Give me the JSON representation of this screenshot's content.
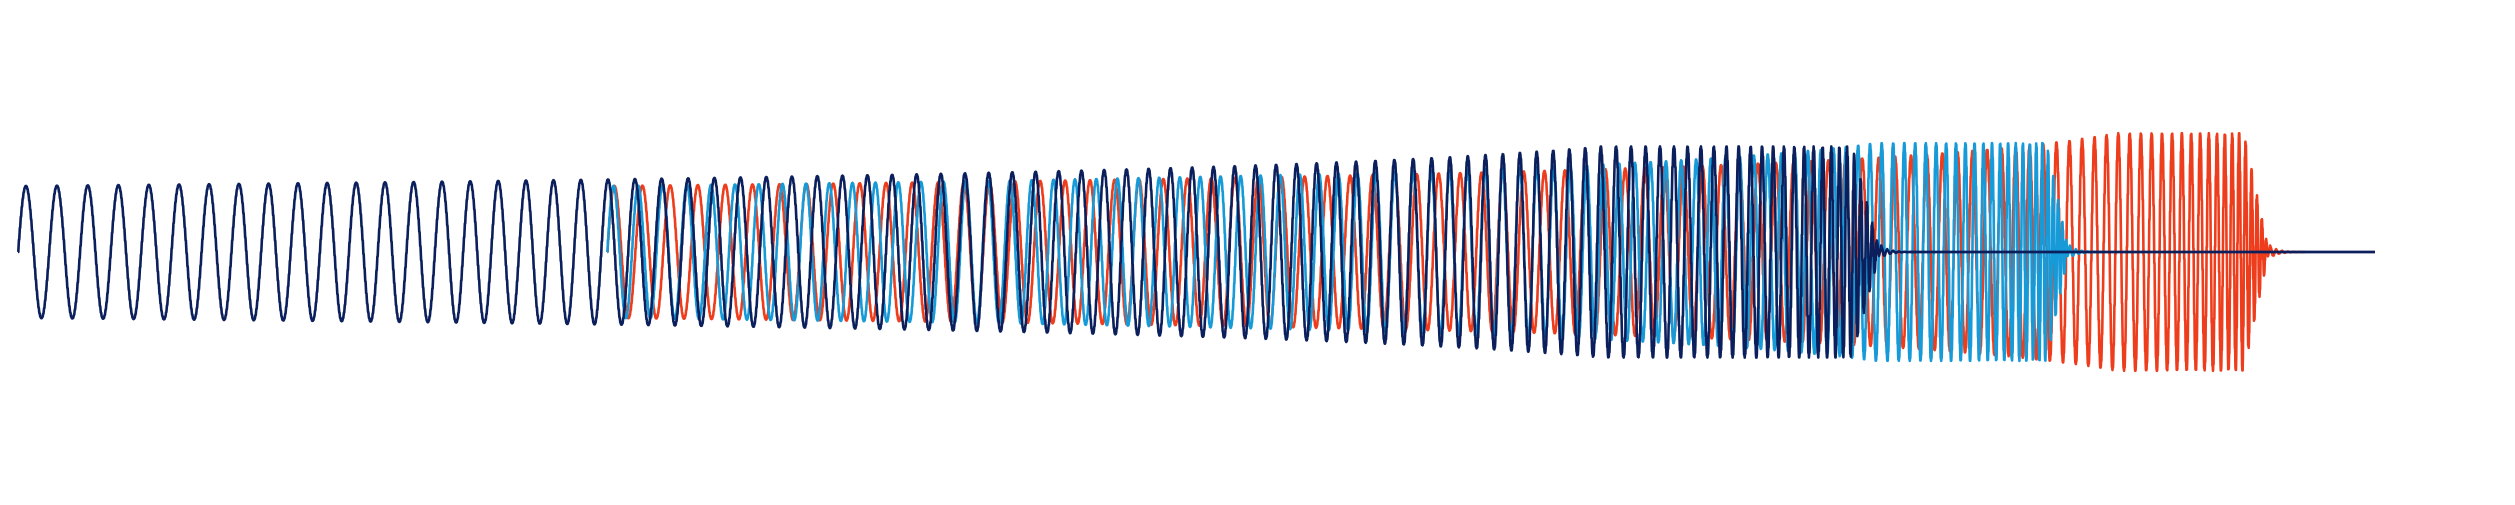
{
  "chart_data": {
    "type": "line",
    "title": "",
    "xlabel": "",
    "ylabel": "",
    "grid": false,
    "axes_visible": false,
    "legend": "none",
    "xlim": [
      0,
      1
    ],
    "ylim": [
      -1.7,
      1.7
    ],
    "series": [
      {
        "color": "#0b1f5c",
        "description_of_shape": "chirp",
        "t_start": 0.0,
        "t_merge": 1.0,
        "t_end": 0.79,
        "baseline_until": 1.0,
        "cycles": 93,
        "amp_start": 1.0,
        "amp_peak": 1.6
      },
      {
        "color": "#169ad8",
        "t_start": 0.25,
        "t_end": 0.87,
        "baseline_until": 0.87,
        "cycles": 92,
        "amp_start": 1.0,
        "amp_peak": 1.65
      },
      {
        "color": "#ee3d1c",
        "t_start": 0.25,
        "t_end": 0.955,
        "baseline_until": 0.955,
        "cycles": 92,
        "amp_start": 1.0,
        "amp_peak": 1.8
      }
    ]
  }
}
